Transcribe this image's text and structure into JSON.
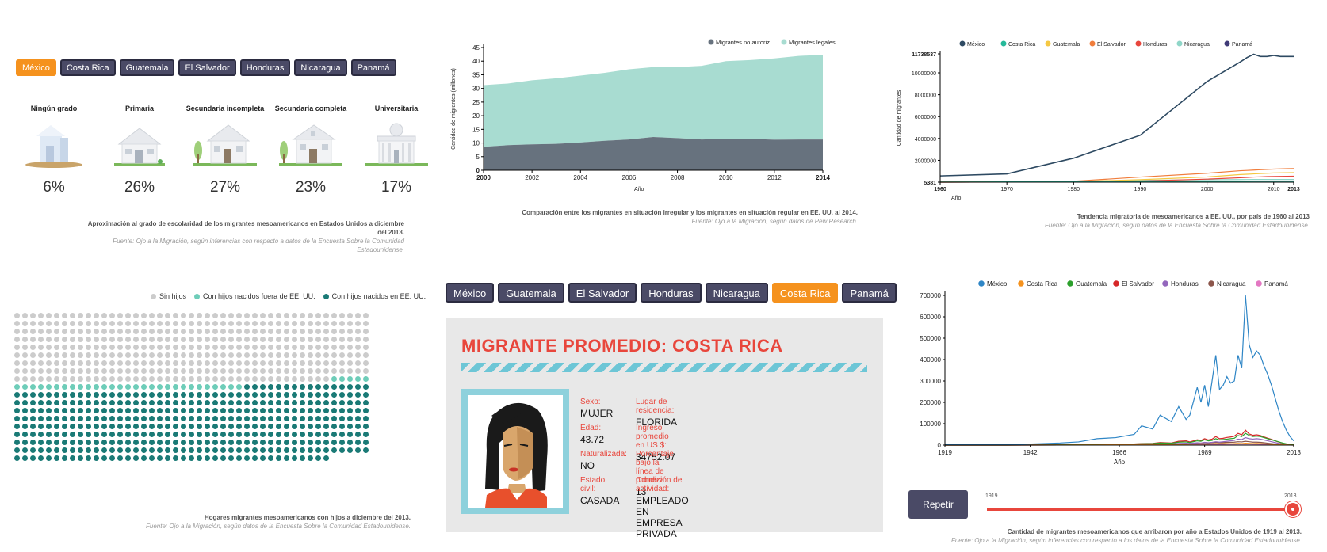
{
  "education": {
    "tabs": [
      "México",
      "Costa Rica",
      "Guatemala",
      "El Salvador",
      "Honduras",
      "Nicaragua",
      "Panamá"
    ],
    "active_tab": 0,
    "levels": [
      {
        "label": "Ningún grado",
        "pct": "6%",
        "value": 6
      },
      {
        "label": "Primaria",
        "pct": "26%",
        "value": 26
      },
      {
        "label": "Secundaria incompleta",
        "pct": "27%",
        "value": 27
      },
      {
        "label": "Secundaria completa",
        "pct": "23%",
        "value": 23
      },
      {
        "label": "Universitaria",
        "pct": "17%",
        "value": 17
      }
    ],
    "caption": "Aproximación al grado de escolaridad de los migrantes mesoamericanos en Estados Unidos a diciembre del 2013.",
    "source": "Fuente: Ojo a la Migración, según inferencias con respecto a datos de la Encuesta Sobre la Comunidad Estadounidense."
  },
  "legal_status": {
    "caption": "Comparación entre los migrantes en situación irregular y los migrantes en situación regular en EE. UU. al 2014.",
    "source": "Fuente: Ojo a la Migración, según datos de Pew Research.",
    "colors": {
      "irregular": "#67727e",
      "legal": "#a8dcd1"
    }
  },
  "trend": {
    "caption": "Tendencia migratoria de mesoamericanos a EE. UU., por país de 1960 al 2013",
    "source": "Fuente: Ojo a la Migración, según datos de la Encuesta Sobre la Comunidad Estadounidense."
  },
  "households": {
    "legend": [
      {
        "label": "Sin hijos",
        "color": "#cccccc"
      },
      {
        "label": "Con hijos nacidos fuera de EE. UU.",
        "color": "#6ecdb9"
      },
      {
        "label": "Con hijos nacidos en EE. UU.",
        "color": "#1a7a76"
      }
    ],
    "counts": {
      "sin_hijos": 400,
      "fuera": 34,
      "en": 416
    },
    "caption": "Hogares migrantes mesoamericanos con hijos a diciembre del 2013.",
    "source": "Fuente: Ojo a la Migración, según datos de la Encuesta Sobre la Comunidad Estadounidense."
  },
  "profile": {
    "tabs": [
      "México",
      "Guatemala",
      "El Salvador",
      "Honduras",
      "Nicaragua",
      "Costa Rica",
      "Panamá"
    ],
    "active_tab": 5,
    "title": "MIGRANTE PROMEDIO: COSTA RICA",
    "fields": [
      {
        "label": "Sexo:",
        "value": "MUJER"
      },
      {
        "label": "Lugar de residencia:",
        "value": "FLORIDA"
      },
      {
        "label": "Edad:",
        "value": "43.72"
      },
      {
        "label": "Ingreso promedio en US $:",
        "value": "34752.07"
      },
      {
        "label": "Naturalizada:",
        "value": "NO"
      },
      {
        "label": "Porcentaje bajo la línea de pobreza:",
        "value": "13"
      },
      {
        "label": "Estado civil:",
        "value": "CASADA"
      },
      {
        "label": "Condición de actividad:",
        "value": "EMPLEADO EN EMPRESA PRIVADA"
      }
    ]
  },
  "arrivals": {
    "repeat_label": "Repetir",
    "slider": {
      "start": "1919",
      "end": "2013",
      "progress": 1.0
    },
    "caption": "Cantidad de migrantes mesoamericanos que arribaron por año a Estados Unidos de 1919 al 2013.",
    "source": "Fuente: Ojo a la Migración, según inferencias con respecto a los datos de la Encuesta Sobre la Comunidad Estadounidense."
  },
  "chart_data": [
    {
      "type": "area",
      "xlabel": "Año",
      "ylabel": "Cantidad de migrantes (millones)",
      "xlim": [
        2000,
        2014
      ],
      "ylim": [
        0,
        45
      ],
      "x_ticks": [
        "2000",
        "2002",
        "2004",
        "2006",
        "2008",
        "2010",
        "2012",
        "2014"
      ],
      "y_ticks": [
        "0",
        "5",
        "10",
        "15",
        "20",
        "25",
        "30",
        "35",
        "40",
        "45"
      ],
      "legend_position": "top-right",
      "x": [
        2000,
        2001,
        2002,
        2003,
        2004,
        2005,
        2006,
        2007,
        2008,
        2009,
        2010,
        2011,
        2012,
        2013,
        2014
      ],
      "series": [
        {
          "name": "Migrantes no autoriz...",
          "color": "#67727e",
          "values": [
            8.6,
            9.2,
            9.5,
            9.7,
            10.2,
            10.8,
            11.3,
            12.2,
            11.8,
            11.3,
            11.4,
            11.5,
            11.2,
            11.3,
            11.3
          ]
        },
        {
          "name": "Migrantes legales",
          "color": "#a8dcd1",
          "values": [
            22.6,
            22.6,
            23.5,
            24.0,
            24.5,
            24.9,
            25.7,
            25.6,
            26.0,
            27.0,
            28.6,
            28.9,
            29.8,
            30.6,
            31.1
          ]
        }
      ]
    },
    {
      "type": "line",
      "xlabel": "Año",
      "ylabel": "Cantidad de migrantes",
      "xlim": [
        1960,
        2013
      ],
      "ylim": [
        5381,
        11738537
      ],
      "x_ticks": [
        "1960",
        "1970",
        "1980",
        "1990",
        "2000",
        "2010",
        "2013"
      ],
      "y_ticks": [
        "5381",
        "2000000",
        "4000000",
        "6000000",
        "8000000",
        "10000000",
        "11738537"
      ],
      "legend_position": "top",
      "x": [
        1960,
        1970,
        1980,
        1990,
        2000,
        2005,
        2006,
        2007,
        2008,
        2009,
        2010,
        2011,
        2012,
        2013
      ],
      "series": [
        {
          "name": "México",
          "color": "#2e4a62",
          "values": [
            575000,
            760000,
            2200000,
            4300000,
            9200000,
            11000000,
            11400000,
            11700000,
            11500000,
            11500000,
            11600000,
            11500000,
            11500000,
            11500000
          ]
        },
        {
          "name": "Costa Rica",
          "color": "#26b99a",
          "values": [
            20000,
            30000,
            30000,
            40000,
            70000,
            80000,
            85000,
            90000,
            90000,
            90000,
            90000,
            90000,
            90000,
            90000
          ]
        },
        {
          "name": "Guatemala",
          "color": "#f5c842",
          "values": [
            10000,
            20000,
            60000,
            230000,
            480000,
            700000,
            730000,
            760000,
            790000,
            820000,
            850000,
            860000,
            870000,
            880000
          ]
        },
        {
          "name": "El Salvador",
          "color": "#f07d3c",
          "values": [
            8000,
            20000,
            90000,
            470000,
            820000,
            1050000,
            1080000,
            1110000,
            1140000,
            1170000,
            1200000,
            1220000,
            1240000,
            1250000
          ]
        },
        {
          "name": "Honduras",
          "color": "#e8463c",
          "values": [
            7000,
            10000,
            40000,
            110000,
            280000,
            410000,
            440000,
            470000,
            490000,
            510000,
            520000,
            530000,
            540000,
            550000
          ]
        },
        {
          "name": "Nicaragua",
          "color": "#8fd6c8",
          "values": [
            5000,
            20000,
            40000,
            170000,
            220000,
            240000,
            245000,
            250000,
            250000,
            250000,
            250000,
            250000,
            250000,
            250000
          ]
        },
        {
          "name": "Panamá",
          "color": "#3f3a77",
          "values": [
            5381,
            20000,
            60000,
            90000,
            105000,
            105000,
            105000,
            105000,
            105000,
            105000,
            105000,
            105000,
            105000,
            105000
          ]
        }
      ]
    },
    {
      "type": "line",
      "xlabel": "Año",
      "ylabel": "",
      "xlim": [
        1919,
        2013
      ],
      "ylim": [
        0,
        700000
      ],
      "x_ticks": [
        "1919",
        "1942",
        "1966",
        "1989",
        "2013"
      ],
      "y_ticks": [
        "0",
        "100000",
        "200000",
        "300000",
        "400000",
        "500000",
        "600000",
        "700000"
      ],
      "legend_position": "top",
      "x": [
        1919,
        1930,
        1940,
        1950,
        1955,
        1960,
        1965,
        1970,
        1972,
        1975,
        1977,
        1980,
        1982,
        1984,
        1985,
        1987,
        1988,
        1989,
        1990,
        1991,
        1992,
        1993,
        1994,
        1995,
        1996,
        1997,
        1998,
        1999,
        2000,
        2001,
        2002,
        2003,
        2004,
        2005,
        2006,
        2007,
        2008,
        2009,
        2010,
        2011,
        2012,
        2013
      ],
      "series": [
        {
          "name": "México",
          "color": "#2f86c6",
          "values": [
            2000,
            3000,
            4000,
            10000,
            15000,
            30000,
            35000,
            50000,
            90000,
            75000,
            140000,
            110000,
            180000,
            120000,
            140000,
            270000,
            200000,
            280000,
            180000,
            300000,
            420000,
            260000,
            280000,
            320000,
            290000,
            300000,
            420000,
            360000,
            700000,
            470000,
            410000,
            440000,
            420000,
            370000,
            330000,
            280000,
            220000,
            160000,
            110000,
            70000,
            40000,
            20000
          ]
        },
        {
          "name": "Costa Rica",
          "color": "#f5921e",
          "values": [
            0,
            0,
            0,
            500,
            800,
            1000,
            1500,
            2000,
            2500,
            3000,
            3000,
            4000,
            4500,
            4000,
            5000,
            5000,
            6000,
            5000,
            5000,
            6000,
            7000,
            6000,
            7000,
            7000,
            6000,
            7000,
            8000,
            7000,
            9000,
            8000,
            7000,
            8000,
            7000,
            6000,
            5000,
            4000,
            3000,
            2000,
            1500,
            1000,
            500,
            0
          ]
        },
        {
          "name": "Guatemala",
          "color": "#2ca02c",
          "values": [
            0,
            0,
            200,
            1000,
            2000,
            2000,
            3000,
            5000,
            6000,
            7000,
            10000,
            9000,
            14000,
            15000,
            12000,
            20000,
            18000,
            25000,
            20000,
            22000,
            30000,
            24000,
            26000,
            28000,
            30000,
            32000,
            45000,
            40000,
            55000,
            45000,
            40000,
            42000,
            40000,
            35000,
            30000,
            25000,
            20000,
            15000,
            10000,
            6000,
            3000,
            1000
          ]
        },
        {
          "name": "El Salvador",
          "color": "#d62728",
          "values": [
            0,
            0,
            200,
            1000,
            1500,
            2000,
            3000,
            5000,
            7000,
            8000,
            12000,
            10000,
            18000,
            20000,
            15000,
            25000,
            22000,
            30000,
            24000,
            28000,
            40000,
            30000,
            32000,
            36000,
            38000,
            42000,
            55000,
            48000,
            70000,
            52000,
            46000,
            48000,
            45000,
            38000,
            32000,
            27000,
            20000,
            14000,
            9000,
            5000,
            2500,
            1000
          ]
        },
        {
          "name": "Honduras",
          "color": "#9467bd",
          "values": [
            0,
            0,
            200,
            800,
            1000,
            1500,
            2000,
            3000,
            4000,
            5000,
            6000,
            6000,
            8000,
            9000,
            8000,
            11000,
            10000,
            13000,
            11000,
            13000,
            16000,
            14000,
            16000,
            18000,
            20000,
            22000,
            28000,
            26000,
            35000,
            30000,
            28000,
            30000,
            28000,
            24000,
            20000,
            16000,
            12000,
            8000,
            5000,
            3000,
            1500,
            500
          ]
        },
        {
          "name": "Nicaragua",
          "color": "#8c564b",
          "values": [
            0,
            0,
            100,
            500,
            800,
            1000,
            1500,
            2000,
            2500,
            3000,
            4000,
            4000,
            6000,
            7000,
            6000,
            9000,
            8000,
            11000,
            9000,
            11000,
            13000,
            11000,
            12000,
            13000,
            13000,
            14000,
            16000,
            15000,
            18000,
            16000,
            14000,
            14000,
            13000,
            11000,
            9000,
            7000,
            5000,
            3500,
            2000,
            1200,
            600,
            200
          ]
        },
        {
          "name": "Panamá",
          "color": "#e377c2",
          "values": [
            0,
            0,
            100,
            300,
            500,
            800,
            1000,
            1500,
            2000,
            2000,
            2500,
            2500,
            3000,
            3000,
            3000,
            3500,
            3500,
            4000,
            3500,
            4000,
            4500,
            4000,
            4000,
            4500,
            4500,
            4500,
            5000,
            5000,
            5500,
            5000,
            4500,
            4500,
            4000,
            3500,
            3000,
            2500,
            2000,
            1500,
            1000,
            600,
            300,
            100
          ]
        }
      ]
    }
  ]
}
